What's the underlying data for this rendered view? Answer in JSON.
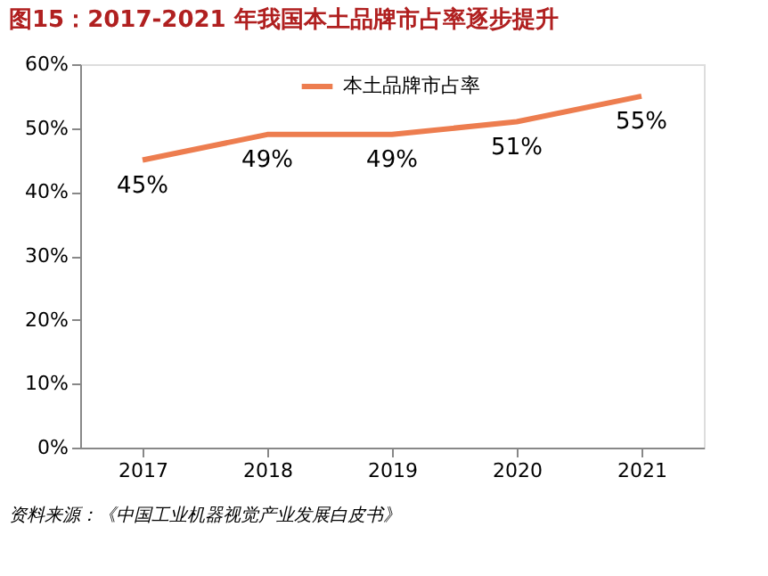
{
  "chart_data": {
    "type": "line",
    "title": "图15：2017-2021 年我国本土品牌市占率逐步提升",
    "categories": [
      "2017",
      "2018",
      "2019",
      "2020",
      "2021"
    ],
    "series": [
      {
        "name": "本土品牌市占率",
        "color": "#ed7d4f",
        "values": [
          45,
          49,
          49,
          51,
          55
        ],
        "value_labels": [
          "45%",
          "49%",
          "49%",
          "51%",
          "55%"
        ]
      }
    ],
    "ylim": [
      0,
      60
    ],
    "yticks": [
      {
        "value": 0,
        "label": "0%"
      },
      {
        "value": 10,
        "label": "10%"
      },
      {
        "value": 20,
        "label": "20%"
      },
      {
        "value": 30,
        "label": "30%"
      },
      {
        "value": 40,
        "label": "40%"
      },
      {
        "value": 50,
        "label": "50%"
      },
      {
        "value": 60,
        "label": "60%"
      }
    ],
    "grid": false,
    "legend": "top right",
    "marker": "none",
    "line_style": "solid",
    "annotations": [
      "资料来源：《中国工业机器视觉产业发展白皮书》"
    ]
  }
}
